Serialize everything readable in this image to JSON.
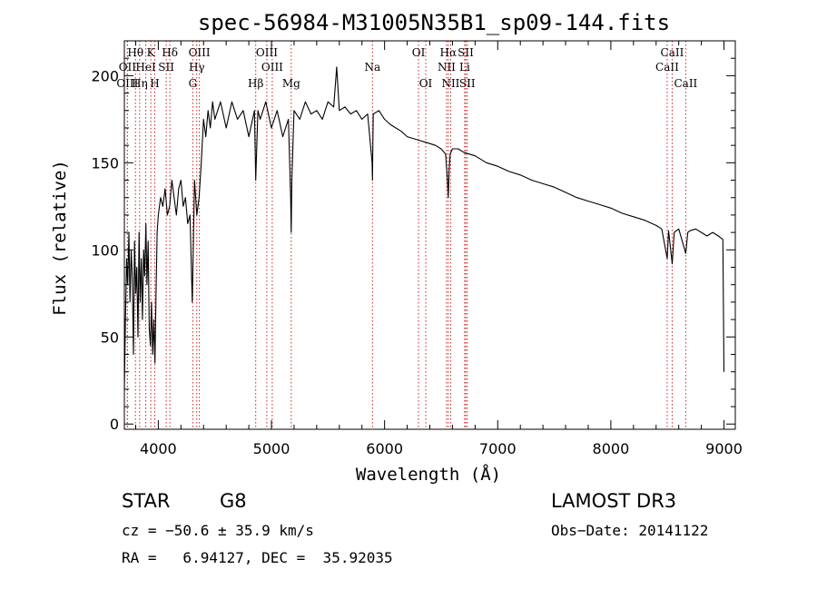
{
  "chart_data": {
    "type": "line",
    "title": "spec-56984-M31005N35B1_sp09-144.fits",
    "xlabel": "Wavelength (Å)",
    "ylabel": "Flux (relative)",
    "xlim": [
      3700,
      9100
    ],
    "ylim": [
      -3,
      220
    ],
    "xticks": [
      4000,
      5000,
      6000,
      7000,
      8000,
      9000
    ],
    "xtick_labels": [
      "4000",
      "5000",
      "6000",
      "7000",
      "8000",
      "9000"
    ],
    "yticks": [
      0,
      50,
      100,
      150,
      200
    ],
    "ytick_labels": [
      "0",
      "50",
      "100",
      "150",
      "200"
    ],
    "grid": false,
    "series": [
      {
        "name": "spectrum",
        "x": [
          3700,
          3710,
          3720,
          3730,
          3740,
          3750,
          3760,
          3770,
          3780,
          3790,
          3800,
          3810,
          3820,
          3830,
          3840,
          3850,
          3860,
          3870,
          3880,
          3890,
          3900,
          3910,
          3920,
          3930,
          3940,
          3950,
          3960,
          3970,
          3980,
          3990,
          4000,
          4020,
          4040,
          4060,
          4080,
          4100,
          4120,
          4140,
          4160,
          4180,
          4200,
          4220,
          4240,
          4260,
          4280,
          4300,
          4320,
          4340,
          4360,
          4380,
          4400,
          4420,
          4440,
          4460,
          4480,
          4500,
          4550,
          4600,
          4650,
          4700,
          4750,
          4800,
          4850,
          4861,
          4880,
          4900,
          4950,
          5000,
          5050,
          5100,
          5150,
          5170,
          5175,
          5180,
          5200,
          5250,
          5300,
          5350,
          5400,
          5450,
          5500,
          5550,
          5577,
          5600,
          5650,
          5700,
          5750,
          5800,
          5850,
          5890,
          5893,
          5896,
          5900,
          5950,
          6000,
          6050,
          6100,
          6150,
          6200,
          6250,
          6300,
          6350,
          6400,
          6450,
          6500,
          6540,
          6556,
          6563,
          6570,
          6580,
          6600,
          6650,
          6700,
          6750,
          6800,
          6900,
          7000,
          7100,
          7200,
          7300,
          7400,
          7500,
          7600,
          7700,
          7800,
          7900,
          8000,
          8100,
          8200,
          8300,
          8400,
          8450,
          8498,
          8510,
          8542,
          8560,
          8600,
          8662,
          8680,
          8700,
          8750,
          8800,
          8850,
          8900,
          8950,
          8990,
          9000
        ],
        "y": [
          20,
          60,
          95,
          80,
          110,
          70,
          100,
          85,
          40,
          105,
          75,
          90,
          50,
          110,
          70,
          95,
          60,
          100,
          85,
          115,
          80,
          105,
          55,
          45,
          70,
          40,
          60,
          35,
          75,
          110,
          120,
          130,
          125,
          135,
          120,
          125,
          140,
          130,
          120,
          135,
          140,
          125,
          130,
          115,
          120,
          70,
          140,
          120,
          130,
          150,
          175,
          165,
          180,
          170,
          185,
          175,
          185,
          170,
          185,
          175,
          180,
          165,
          180,
          140,
          180,
          175,
          185,
          170,
          180,
          165,
          175,
          130,
          110,
          140,
          180,
          175,
          185,
          178,
          180,
          175,
          185,
          182,
          205,
          180,
          182,
          178,
          180,
          175,
          178,
          150,
          140,
          160,
          178,
          180,
          175,
          172,
          170,
          168,
          165,
          164,
          163,
          162,
          161,
          160,
          158,
          155,
          140,
          130,
          145,
          155,
          158,
          158,
          156,
          155,
          154,
          150,
          148,
          145,
          143,
          140,
          138,
          136,
          133,
          130,
          128,
          126,
          124,
          121,
          119,
          117,
          114,
          112,
          95,
          111,
          92,
          110,
          112,
          98,
          110,
          111,
          112,
          110,
          108,
          110,
          108,
          106,
          30
        ]
      }
    ],
    "line_annotations": [
      {
        "label": "Hθ",
        "x": 3798,
        "row": 1
      },
      {
        "label": "OII",
        "x": 3727,
        "row": 2
      },
      {
        "label": "OIII",
        "x": 3727,
        "row": 3
      },
      {
        "label": "K",
        "x": 3934,
        "row": 1
      },
      {
        "label": "HeI",
        "x": 3889,
        "row": 2
      },
      {
        "label": "Hη",
        "x": 3835,
        "row": 3
      },
      {
        "label": "H",
        "x": 3969,
        "row": 3
      },
      {
        "label": "Hδ",
        "x": 4102,
        "row": 1
      },
      {
        "label": "SII",
        "x": 4070,
        "row": 2
      },
      {
        "label": "OIII",
        "x": 4363,
        "row": 1
      },
      {
        "label": "Hγ",
        "x": 4340,
        "row": 2
      },
      {
        "label": "G",
        "x": 4305,
        "row": 3
      },
      {
        "label": "OIII",
        "x": 4959,
        "row": 1
      },
      {
        "label": "OIII",
        "x": 5007,
        "row": 2
      },
      {
        "label": "Hβ",
        "x": 4861,
        "row": 3
      },
      {
        "label": "Mg",
        "x": 5175,
        "row": 3
      },
      {
        "label": "Na",
        "x": 5893,
        "row": 2
      },
      {
        "label": "OI",
        "x": 6300,
        "row": 1
      },
      {
        "label": "OI",
        "x": 6364,
        "row": 3
      },
      {
        "label": "Hα",
        "x": 6563,
        "row": 1
      },
      {
        "label": "NII",
        "x": 6548,
        "row": 2
      },
      {
        "label": "NII",
        "x": 6584,
        "row": 3
      },
      {
        "label": "SII",
        "x": 6717,
        "row": 1
      },
      {
        "label": "Li",
        "x": 6708,
        "row": 2
      },
      {
        "label": "SII",
        "x": 6731,
        "row": 3
      },
      {
        "label": "CaII",
        "x": 8542,
        "row": 1
      },
      {
        "label": "CaII",
        "x": 8498,
        "row": 2
      },
      {
        "label": "CaII",
        "x": 8662,
        "row": 3
      }
    ]
  },
  "info": {
    "object_class": "STAR",
    "subclass": "G8",
    "survey": "LAMOST DR3",
    "cz": "cz = −50.6 ± 35.9 km/s",
    "obs_date": "Obs−Date: 20141122",
    "coords": "RA =   6.94127, DEC =  35.92035"
  }
}
